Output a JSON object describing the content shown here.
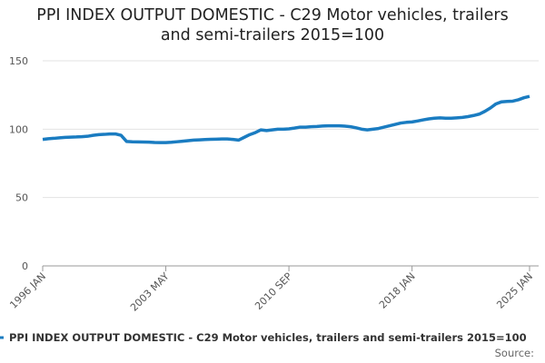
{
  "chart_data": {
    "type": "line",
    "title": "PPI INDEX OUTPUT DOMESTIC - C29 Motor vehicles, trailers and semi-trailers 2015=100",
    "categories": [
      "1996 JAN",
      null,
      null,
      null,
      null,
      null,
      null,
      null,
      null,
      null,
      null,
      null,
      null,
      null,
      null,
      null,
      null,
      null,
      null,
      null,
      null,
      null,
      "2003 MAY",
      null,
      null,
      null,
      null,
      null,
      null,
      null,
      null,
      null,
      null,
      null,
      null,
      null,
      null,
      null,
      null,
      null,
      null,
      null,
      null,
      null,
      "2010 SEP",
      null,
      null,
      null,
      null,
      null,
      null,
      null,
      null,
      null,
      null,
      null,
      null,
      null,
      null,
      null,
      null,
      null,
      null,
      null,
      null,
      null,
      "2018 JAN",
      null,
      null,
      null,
      null,
      null,
      null,
      null,
      null,
      null,
      null,
      null,
      null,
      null,
      null,
      null,
      null,
      null,
      null,
      null,
      null,
      "2025 JAN"
    ],
    "series": [
      {
        "name": "PPI INDEX OUTPUT DOMESTIC - C29 Motor vehicles, trailers and semi-trailers 2015=100",
        "color": "#1a7cc1",
        "values": [
          92.5,
          93,
          93.3,
          93.7,
          94,
          94.2,
          94.3,
          94.5,
          94.8,
          95.5,
          96,
          96.2,
          96.5,
          96.5,
          95.5,
          91,
          90.8,
          90.7,
          90.6,
          90.5,
          90.3,
          90.2,
          90.2,
          90.4,
          90.8,
          91.2,
          91.6,
          92,
          92.2,
          92.4,
          92.6,
          92.7,
          92.8,
          92.8,
          92.5,
          92,
          94,
          96,
          97.5,
          99.5,
          99,
          99.5,
          100,
          100,
          100.2,
          100.8,
          101.5,
          101.5,
          101.8,
          102,
          102.3,
          102.5,
          102.5,
          102.5,
          102.2,
          101.8,
          101,
          100,
          99.5,
          100,
          100.5,
          101.5,
          102.5,
          103.5,
          104.5,
          105,
          105.3,
          106,
          106.8,
          107.5,
          108,
          108.3,
          108,
          108,
          108.3,
          108.6,
          109.2,
          110,
          111,
          113,
          115.5,
          118.5,
          120,
          120.3,
          120.5,
          121.5,
          123,
          124
        ]
      }
    ],
    "ylim": [
      0,
      150
    ],
    "yticks": [
      0,
      50,
      100,
      150
    ],
    "grid": true,
    "source": "Source:"
  }
}
